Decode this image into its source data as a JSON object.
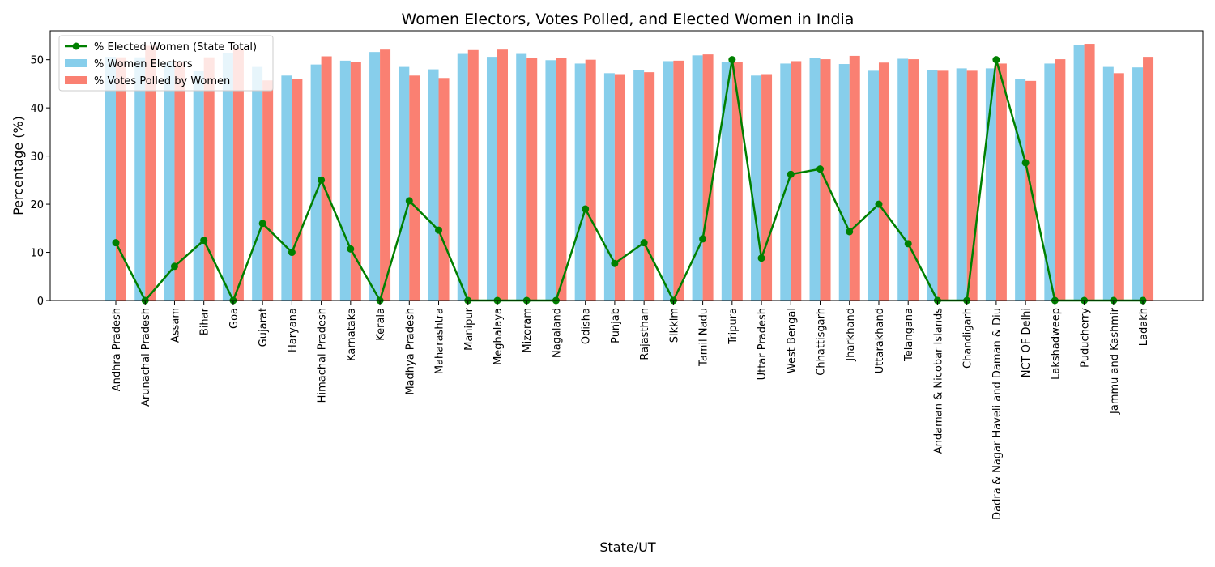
{
  "chart_data": {
    "type": "bar",
    "title": "Women Electors, Votes Polled, and Elected Women in India",
    "xlabel": "State/UT",
    "ylabel": "Percentage (%)",
    "ylim": [
      0,
      56
    ],
    "yticks": [
      0,
      10,
      20,
      30,
      40,
      50
    ],
    "grid": false,
    "legend_position": "top-left",
    "categories": [
      "Andhra Pradesh",
      "Arunachal Pradesh",
      "Assam",
      "Bihar",
      "Goa",
      "Gujarat",
      "Haryana",
      "Himachal Pradesh",
      "Karnataka",
      "Kerala",
      "Madhya Pradesh",
      "Maharashtra",
      "Manipur",
      "Meghalaya",
      "Mizoram",
      "Nagaland",
      "Odisha",
      "Punjab",
      "Rajasthan",
      "Sikkim",
      "Tamil Nadu",
      "Tripura",
      "Uttar Pradesh",
      "West Bengal",
      "Chhattisgarh",
      "Jharkhand",
      "Uttarakhand",
      "Telangana",
      "Andaman & Nicobar Islands",
      "Chandigarh",
      "Dadra & Nagar Haveli and Daman & Diu",
      "NCT OF Delhi",
      "Lakshadweep",
      "Puducherry",
      "Jammu and Kashmir",
      "Ladakh"
    ],
    "series": [
      {
        "name": "% Women Electors",
        "type": "bar",
        "color": "#87ceeb",
        "values": [
          50.6,
          50.5,
          49.5,
          47.6,
          51.4,
          48.5,
          46.7,
          49.0,
          49.8,
          51.6,
          48.5,
          48.0,
          51.2,
          50.6,
          51.2,
          49.9,
          49.2,
          47.2,
          47.8,
          49.7,
          50.9,
          49.5,
          46.7,
          49.2,
          50.4,
          49.1,
          47.7,
          50.2,
          47.9,
          48.2,
          48.2,
          46.0,
          49.2,
          53.0,
          48.5,
          48.4
        ]
      },
      {
        "name": "% Votes Polled by Women",
        "type": "bar",
        "color": "#fa8072",
        "values": [
          50.5,
          52.9,
          49.6,
          50.5,
          52.4,
          45.7,
          46.0,
          50.7,
          49.6,
          52.1,
          46.7,
          46.2,
          52.0,
          52.1,
          50.4,
          50.4,
          50.0,
          47.0,
          47.4,
          49.8,
          51.1,
          49.5,
          47.0,
          49.7,
          50.1,
          50.8,
          49.4,
          50.1,
          47.7,
          47.7,
          49.2,
          45.6,
          50.1,
          53.3,
          47.2,
          50.6
        ]
      },
      {
        "name": "% Elected Women (State Total)",
        "type": "line",
        "color": "#008000",
        "values": [
          12.0,
          0,
          7.1,
          12.5,
          0,
          16.0,
          10.0,
          25.0,
          10.7,
          0,
          20.7,
          14.6,
          0,
          0,
          0,
          0,
          19.0,
          7.7,
          12.0,
          0,
          12.8,
          50.0,
          8.8,
          26.2,
          27.3,
          14.3,
          20.0,
          11.8,
          0,
          0,
          50.0,
          28.6,
          0,
          0,
          0,
          0
        ]
      }
    ]
  }
}
